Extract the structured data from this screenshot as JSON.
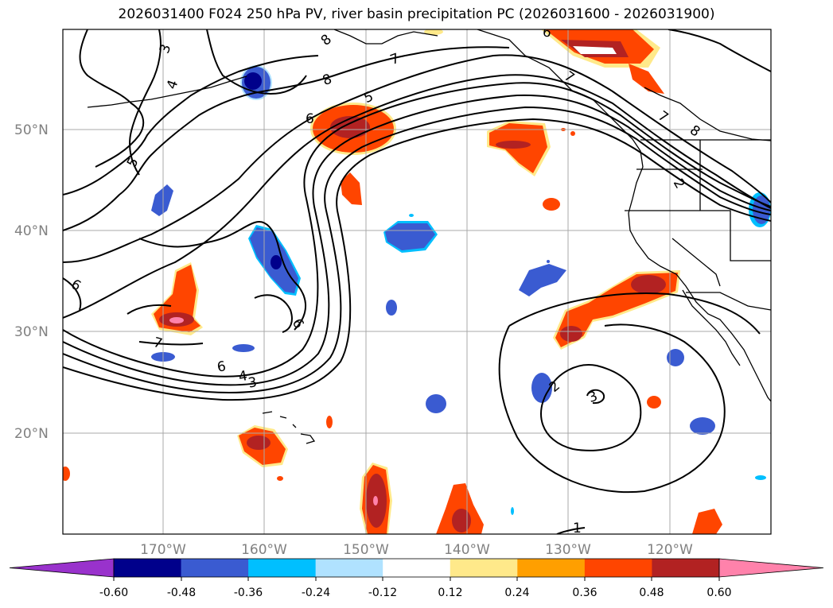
{
  "title": "2026031400 F024 250 hPa PV, river basin precipitation PC (2026031600 - 2026031900)",
  "latitude_labels": [
    "50°N",
    "40°N",
    "30°N",
    "20°N"
  ],
  "longitude_labels": [
    "170°W",
    "160°W",
    "150°W",
    "140°W",
    "130°W",
    "120°W"
  ],
  "colorbar": {
    "labels": [
      "-0.60",
      "-0.48",
      "-0.36",
      "-0.24",
      "-0.12",
      "0.12",
      "0.24",
      "0.36",
      "0.48",
      "0.60"
    ],
    "colors": [
      "#9932cc",
      "#00008b",
      "#3a5bd1",
      "#00bfff",
      "#b0e2ff",
      "#ffffff",
      "#ffe98a",
      "#ff9f00",
      "#ff4500",
      "#b22222",
      "#ff82ab"
    ]
  },
  "contour_labels": [
    "3",
    "4",
    "5",
    "6",
    "7",
    "8",
    "5",
    "7",
    "8",
    "6",
    "7",
    "8",
    "2",
    "6",
    "6",
    "7",
    "6",
    "4",
    "3",
    "2",
    "3",
    "1"
  ],
  "map_content": {
    "contour_field": "250 hPa PV",
    "shaded_field": "river basin precipitation PC",
    "coastlines": "black",
    "gridlines": true,
    "map_colors": {
      "coast": "#000000",
      "grid": "#a9a9a9"
    }
  }
}
